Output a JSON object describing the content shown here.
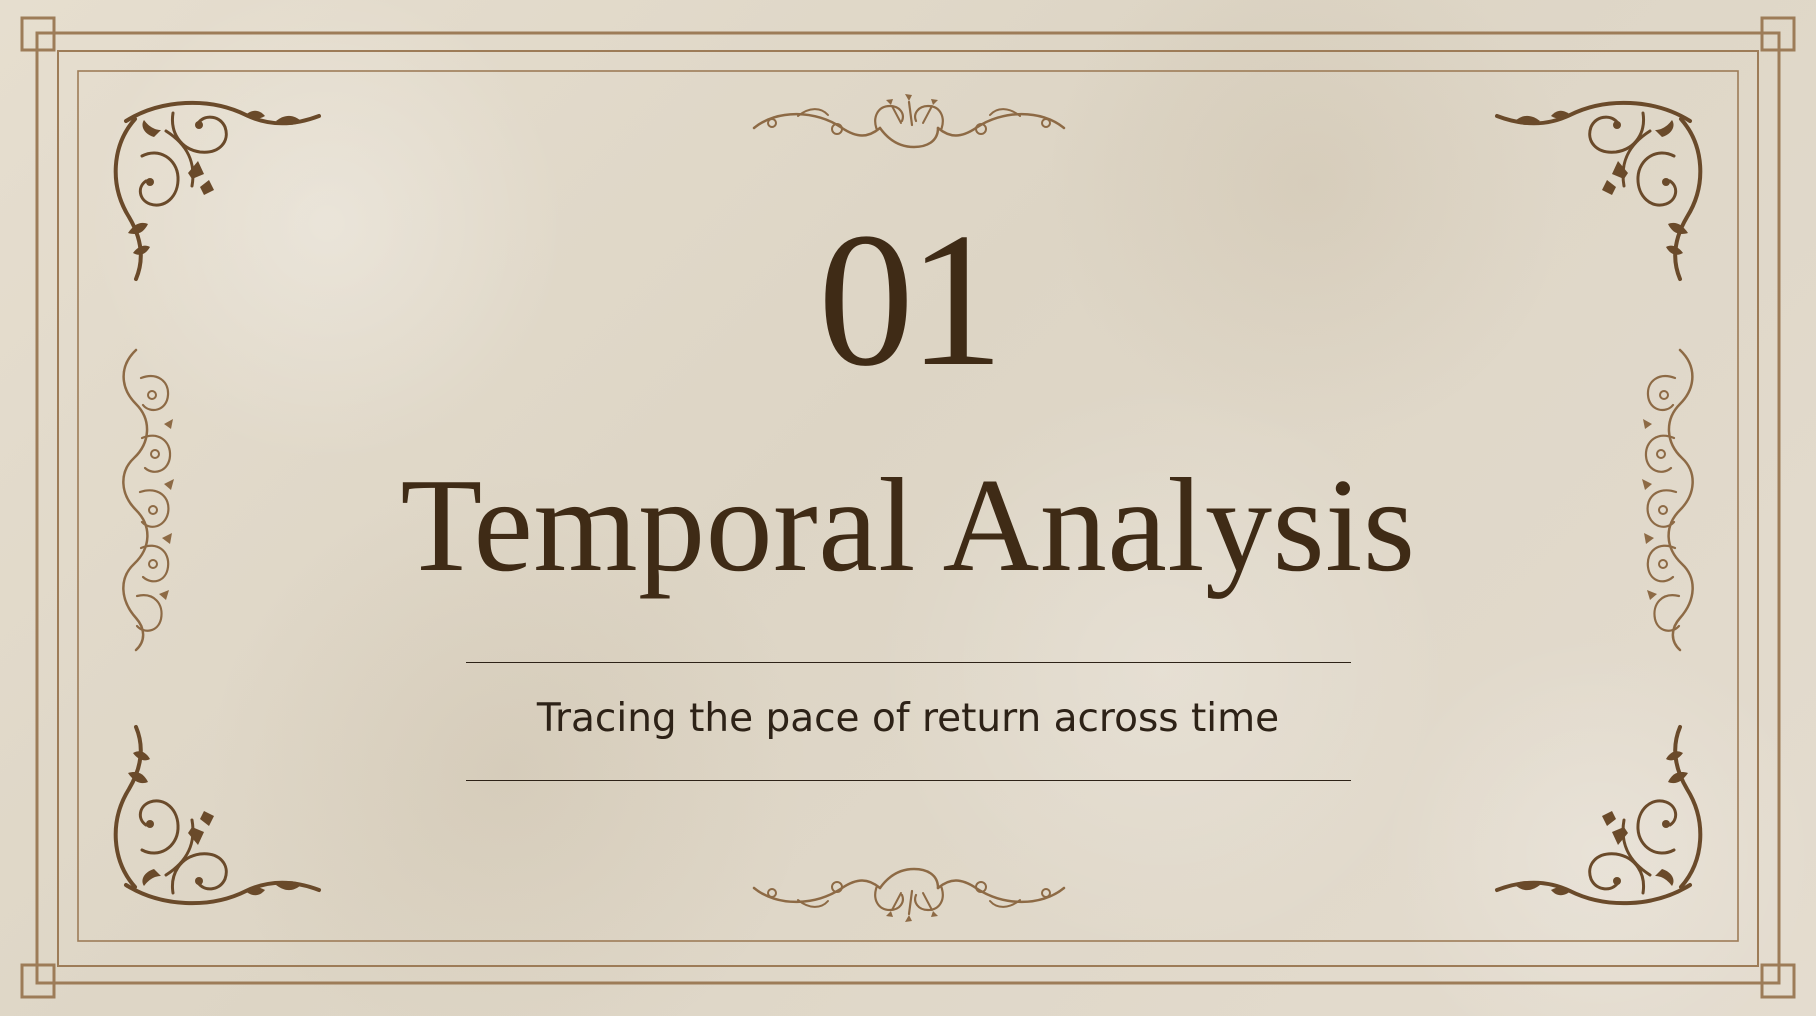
{
  "slide": {
    "number": "01",
    "title": "Temporal Analysis",
    "subtitle": "Tracing the pace of return across time"
  },
  "decorations": {
    "corner_ornament_icon": "flourish-corner-icon",
    "side_ornament_icon": "scroll-side-icon",
    "center_ornament_icon": "flourish-center-icon"
  },
  "colors": {
    "background": "#e2dacb",
    "frame": "#9d7c58",
    "text": "#3f2b16",
    "ornament": "#6a4a2a"
  }
}
